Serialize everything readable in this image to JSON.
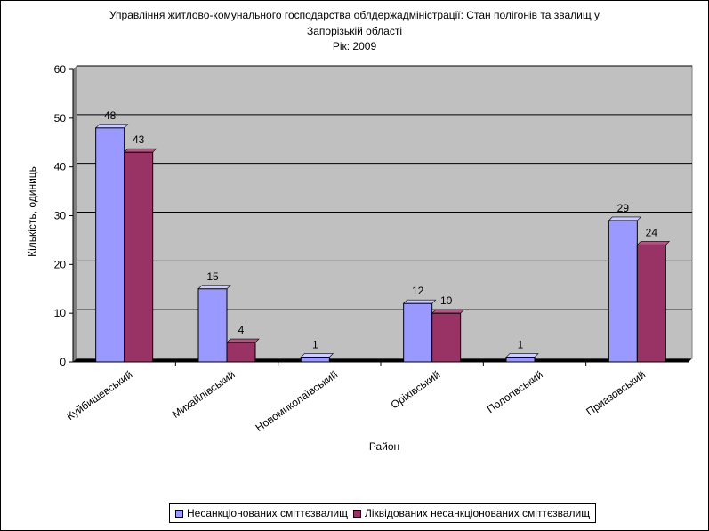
{
  "chart_data": {
    "type": "bar",
    "title": "Управління житлово-комунального господарства облдержадміністрації: Стан полігонів та звалищ у Запорізькій області",
    "title_lines": [
      "Управління житлово-комунального господарства облдержадміністрації: Стан полігонів та звалищ у",
      "Запорізькій області",
      "Рік: 2009"
    ],
    "subtitle": "Рік: 2009",
    "xlabel": "Район",
    "ylabel": "Кількість, одиниць",
    "ylim": [
      0,
      60
    ],
    "yticks": [
      0,
      10,
      20,
      30,
      40,
      50,
      60
    ],
    "categories": [
      "Куйбишевський",
      "Михайлівський",
      "Новомиколаївський",
      "Оріхівський",
      "Пологівський",
      "Приазовський"
    ],
    "series": [
      {
        "name": "Несанкціонованих сміттєзвалищ",
        "values": [
          48,
          15,
          1,
          12,
          1,
          29
        ],
        "color": "#9999ff"
      },
      {
        "name": "Ліквідованих несанкціонованих сміттєзвалищ",
        "values": [
          43,
          4,
          null,
          10,
          null,
          24
        ],
        "color": "#993366"
      }
    ],
    "grid": true,
    "plot_background": "#c0c0c0",
    "legend_position": "bottom"
  }
}
